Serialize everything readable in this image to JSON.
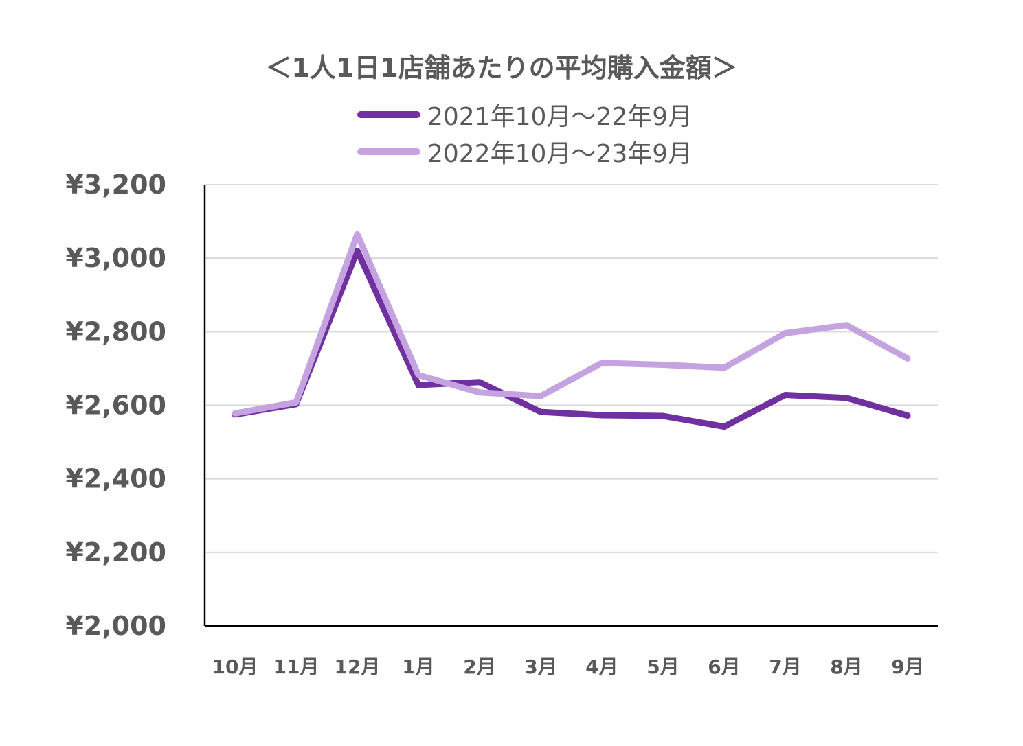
{
  "chart_data": {
    "type": "line",
    "title": "＜1人1日1店舗あたりの平均購入金額＞",
    "categories": [
      "10月",
      "11月",
      "12月",
      "1月",
      "2月",
      "3月",
      "4月",
      "5月",
      "6月",
      "7月",
      "8月",
      "9月"
    ],
    "series": [
      {
        "name": "2021年10月～22年9月",
        "color": "#7030a0",
        "values": [
          2575,
          2603,
          3020,
          2655,
          2663,
          2582,
          2573,
          2571,
          2542,
          2628,
          2620,
          2572
        ]
      },
      {
        "name": "2022年10月～23年9月",
        "color": "#c5a3e0",
        "values": [
          2578,
          2608,
          3065,
          2682,
          2635,
          2625,
          2715,
          2710,
          2702,
          2796,
          2818,
          2727
        ]
      }
    ],
    "ylim": [
      2000,
      3200
    ],
    "yticks": [
      "¥2,000",
      "¥2,200",
      "¥2,400",
      "¥2,600",
      "¥2,800",
      "¥3,000",
      "¥3,200"
    ],
    "ytick_values": [
      2000,
      2200,
      2400,
      2600,
      2800,
      3000,
      3200
    ],
    "grid": true,
    "legend_position": "top"
  }
}
